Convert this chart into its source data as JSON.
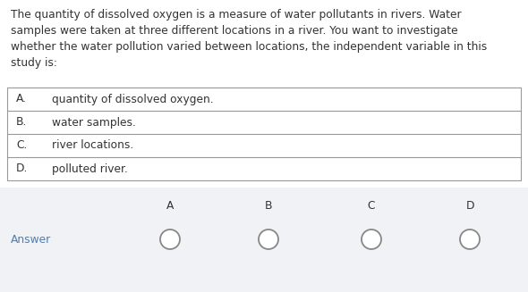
{
  "paragraph_lines": [
    "The quantity of dissolved oxygen is a measure of water pollutants in rivers. Water",
    "samples were taken at three different locations in a river. You want to investigate",
    "whether the water pollution varied between locations, the independent variable in this",
    "study is:"
  ],
  "options": [
    {
      "letter": "A.",
      "text": "quantity of dissolved oxygen."
    },
    {
      "letter": "B.",
      "text": "water samples."
    },
    {
      "letter": "C.",
      "text": "river locations."
    },
    {
      "letter": "D.",
      "text": "polluted river."
    }
  ],
  "answer_label": "Answer",
  "answer_choices": [
    "A",
    "B",
    "C",
    "D"
  ],
  "background_color": "#ffffff",
  "answer_row_bg": "#f0f2f5",
  "table_border_color": "#999999",
  "text_color": "#333333",
  "answer_text_color": "#4a7fb5",
  "para_fontsize": 8.8,
  "option_fontsize": 8.8,
  "answer_fontsize": 8.8,
  "fig_width": 5.9,
  "fig_height": 3.27,
  "dpi": 100
}
